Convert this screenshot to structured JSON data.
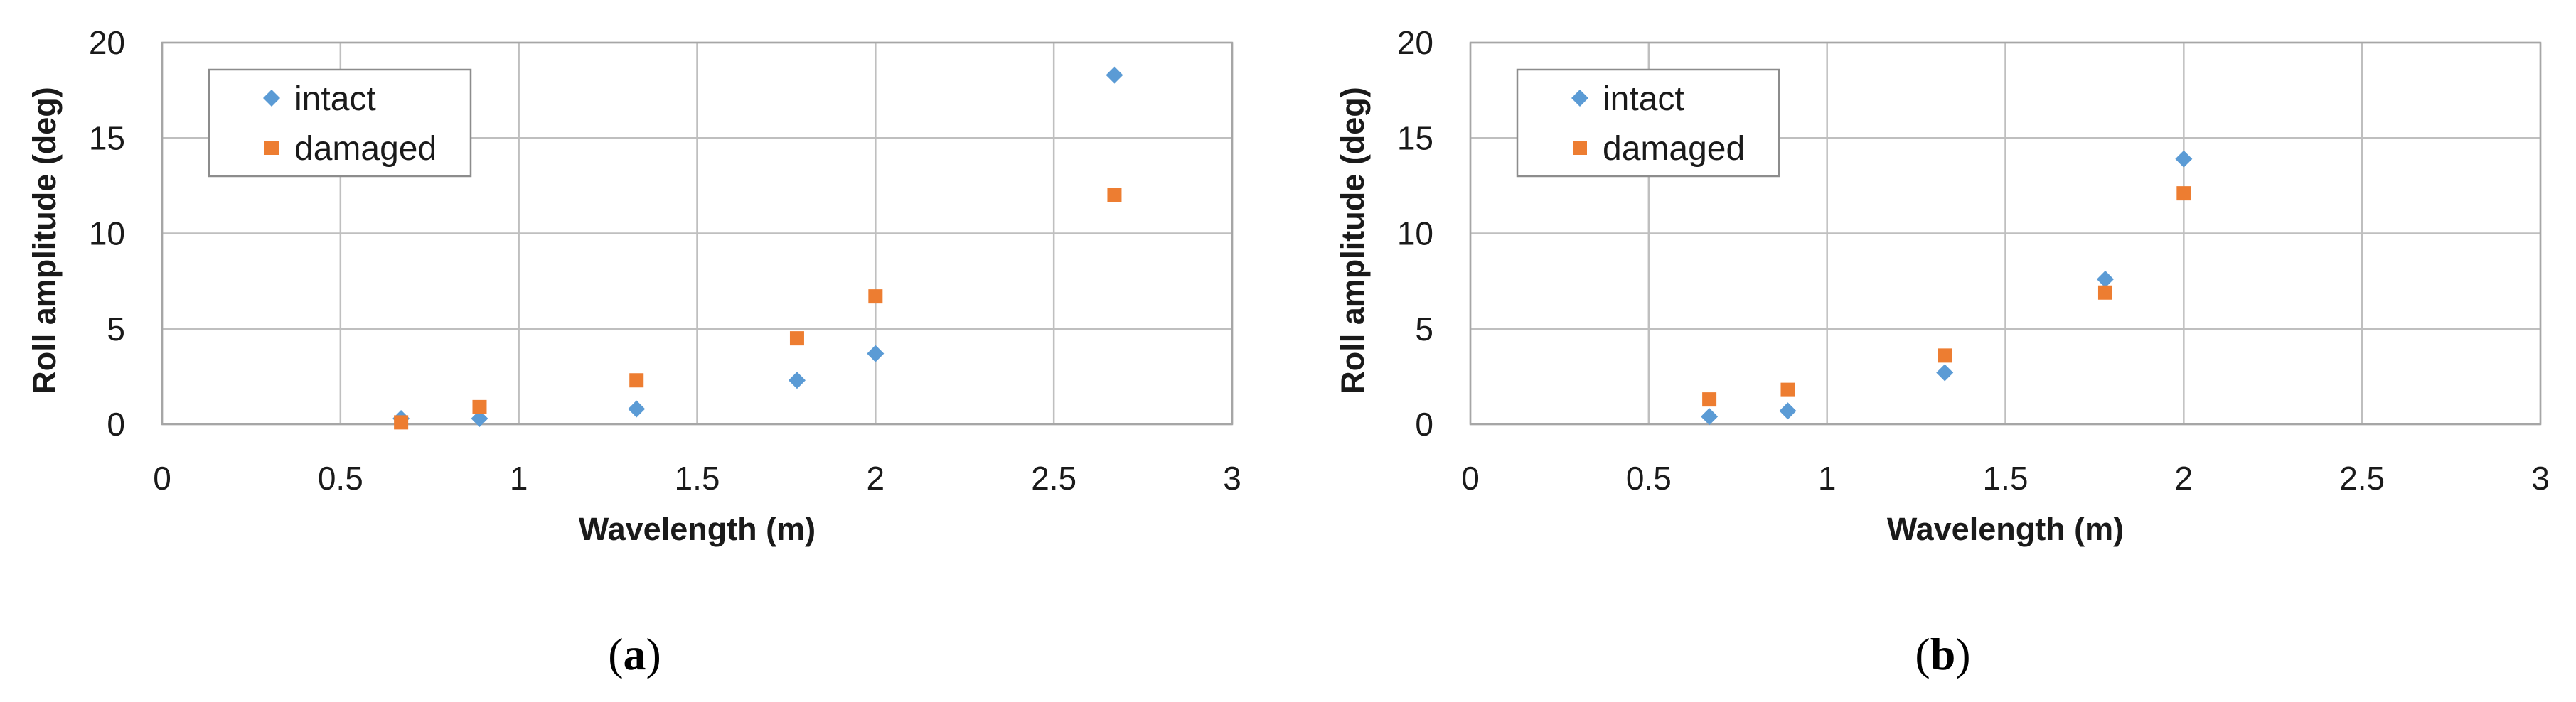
{
  "chart_data": [
    {
      "type": "scatter",
      "panel_label": "a",
      "xlabel": "Wavelength (m)",
      "ylabel": "Roll amplitude (deg)",
      "xlim": [
        0,
        3
      ],
      "ylim": [
        0,
        20
      ],
      "x_ticks": [
        "0",
        "0.5",
        "1",
        "1.5",
        "2",
        "2.5",
        "3"
      ],
      "y_ticks": [
        "0",
        "5",
        "10",
        "15",
        "20"
      ],
      "grid": true,
      "legend": "top-left",
      "series": [
        {
          "name": "intact",
          "marker": "diamond",
          "color": "#5b9bd5",
          "points": [
            [
              0.67,
              0.3
            ],
            [
              0.89,
              0.3
            ],
            [
              1.33,
              0.8
            ],
            [
              1.78,
              2.3
            ],
            [
              2.0,
              3.7
            ],
            [
              2.67,
              18.3
            ]
          ]
        },
        {
          "name": "damaged",
          "marker": "square",
          "color": "#ed7d31",
          "points": [
            [
              0.67,
              0.1
            ],
            [
              0.89,
              0.9
            ],
            [
              1.33,
              2.3
            ],
            [
              1.78,
              4.5
            ],
            [
              2.0,
              6.7
            ],
            [
              2.67,
              12.0
            ]
          ]
        }
      ]
    },
    {
      "type": "scatter",
      "panel_label": "b",
      "xlabel": "Wavelength (m)",
      "ylabel": "Roll amplitude (deg)",
      "xlim": [
        0,
        3
      ],
      "ylim": [
        0,
        20
      ],
      "x_ticks": [
        "0",
        "0.5",
        "1",
        "1.5",
        "2",
        "2.5",
        "3"
      ],
      "y_ticks": [
        "0",
        "5",
        "10",
        "15",
        "20"
      ],
      "grid": true,
      "legend": "top-left",
      "series": [
        {
          "name": "intact",
          "marker": "diamond",
          "color": "#5b9bd5",
          "points": [
            [
              0.67,
              0.4
            ],
            [
              0.89,
              0.7
            ],
            [
              1.33,
              2.7
            ],
            [
              1.78,
              7.6
            ],
            [
              2.0,
              13.9
            ]
          ]
        },
        {
          "name": "damaged",
          "marker": "square",
          "color": "#ed7d31",
          "points": [
            [
              0.67,
              1.3
            ],
            [
              0.89,
              1.8
            ],
            [
              1.33,
              3.6
            ],
            [
              1.78,
              6.9
            ],
            [
              2.0,
              12.1
            ]
          ]
        }
      ]
    }
  ]
}
